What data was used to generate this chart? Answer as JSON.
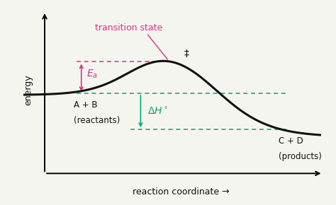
{
  "background_color": "#f5f5f0",
  "curve_color": "#111111",
  "curve_linewidth": 2.2,
  "magenta_color": "#d63384",
  "green_color": "#00a878",
  "dashed_linewidth": 1.1,
  "text_color": "#111111",
  "title_text": "transition state",
  "ea_label": "$E_a$",
  "dH_label": "$\\Delta H^\\circ$",
  "reactant_label_line1": "A + B",
  "reactant_label_line2": "(reactants)",
  "product_label_line1": "C + D",
  "product_label_line2": "(products)",
  "double_dagger": "‡",
  "xlabel": "reaction coordinate →",
  "ylabel": "energy",
  "r_level": 0.54,
  "p_level": 0.3,
  "ts_level": 0.88
}
